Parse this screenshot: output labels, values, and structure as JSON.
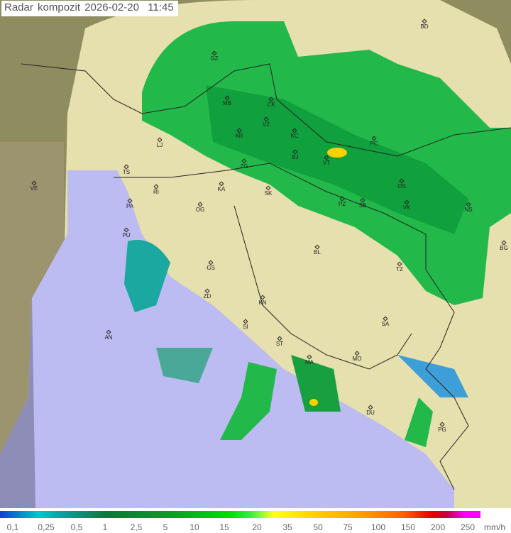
{
  "title": {
    "label": "Radar kompozit",
    "date": "2026-02-20",
    "time": "11:45"
  },
  "legend": {
    "values": [
      "0,1",
      "0,25",
      "0,5",
      "1",
      "2,5",
      "5",
      "10",
      "15",
      "20",
      "35",
      "50",
      "75",
      "100",
      "150",
      "200",
      "250"
    ],
    "unit": "mm/h",
    "colors": [
      "#0a3fd8",
      "#00c8c8",
      "#0a7a3a",
      "#00e000",
      "#ffff20",
      "#ffa000",
      "#e00000",
      "#ff00ff"
    ]
  },
  "cities": [
    "BD",
    "GZ",
    "MB",
    "CK",
    "VZ",
    "KR",
    "KC",
    "LJ",
    "ZG",
    "BJ",
    "VT",
    "PC",
    "TS",
    "VE",
    "RI",
    "KA",
    "SK",
    "OS",
    "VK",
    "NS",
    "PA",
    "OG",
    "PZ",
    "SB",
    "PU",
    "BL",
    "BG",
    "GS",
    "TZ",
    "ZD",
    "KN",
    "SA",
    "SI",
    "AN",
    "ST",
    "MO",
    "MA",
    "DU",
    "PG"
  ],
  "colors": {
    "sea": "#b8b8f0",
    "land": "#e6dfae",
    "outside": "#8a8a5a",
    "radar_light": "#2fbf4f",
    "radar_medium": "#0f9f3f",
    "radar_heavy": "#ffd000"
  }
}
